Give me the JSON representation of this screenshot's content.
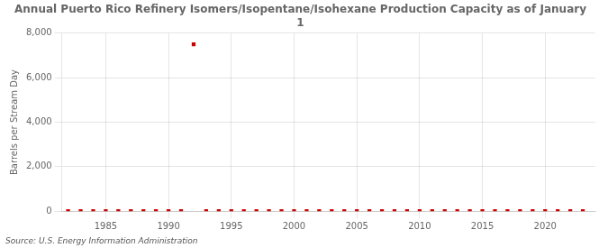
{
  "chart_data": {
    "type": "scatter",
    "title": "Annual Puerto Rico Refinery Isomers/Isopentane/Isohexane Production Capacity as of January\n1",
    "ylabel": "Barrels per Stream Day",
    "annotations": [
      "Source: U.S. Energy Information Administration"
    ],
    "x": [
      1982,
      1983,
      1984,
      1985,
      1986,
      1987,
      1988,
      1989,
      1990,
      1991,
      1992,
      1993,
      1994,
      1995,
      1996,
      1997,
      1998,
      1999,
      2000,
      2001,
      2002,
      2003,
      2004,
      2005,
      2006,
      2007,
      2008,
      2009,
      2010,
      2011,
      2012,
      2013,
      2014,
      2015,
      2016,
      2017,
      2018,
      2019,
      2020,
      2021,
      2022,
      2023
    ],
    "values": [
      0,
      0,
      0,
      0,
      0,
      0,
      0,
      0,
      0,
      0,
      7500,
      0,
      0,
      0,
      0,
      0,
      0,
      0,
      0,
      0,
      0,
      0,
      0,
      0,
      0,
      0,
      0,
      0,
      0,
      0,
      0,
      0,
      0,
      0,
      0,
      0,
      0,
      0,
      0,
      0,
      0,
      0
    ],
    "color": "#cc0000",
    "marker": "square",
    "xlim": [
      1981.5,
      2024
    ],
    "xticks": [
      1985,
      1990,
      1995,
      2000,
      2005,
      2010,
      2015,
      2020
    ],
    "ylim": [
      0,
      8000
    ],
    "yticks": [
      0,
      {
        "value": 2000,
        "label": "2,000"
      },
      {
        "value": 4000,
        "label": "4,000"
      },
      {
        "value": 6000,
        "label": "6,000"
      },
      {
        "value": 8000,
        "label": "8,000"
      }
    ],
    "grid": true
  }
}
